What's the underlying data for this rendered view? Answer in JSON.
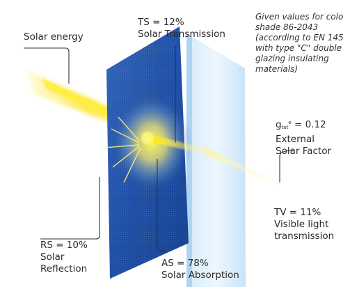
{
  "note": {
    "lines": [
      "Given values for colo",
      "shade 86-2043",
      "(according to EN 145",
      "with type \"C\" double",
      "glazing insulating",
      "materials)"
    ]
  },
  "labels": {
    "solar_energy": "Solar energy",
    "ts": {
      "value": "TS = 12%",
      "name": "Solar Transmission"
    },
    "gtot": {
      "symbol": "g",
      "subscript": "tot",
      "superscript": "e",
      "value": "= 0.12",
      "line2": "External",
      "line3": "Solar Factor"
    },
    "tv": {
      "value": "TV = 11%",
      "line2": "Visible light",
      "line3": "transmission"
    },
    "rs": {
      "value": "RS = 10%",
      "line2": "Solar",
      "line3": "Reflection"
    },
    "as": {
      "value": "AS = 78%",
      "name": "Solar Absorption"
    }
  },
  "colors": {
    "fabric_blue": "#1f4fa6",
    "glass": "#b9dcf5",
    "sun_yellow": "#ffe600",
    "text": "#2b2b2b"
  }
}
